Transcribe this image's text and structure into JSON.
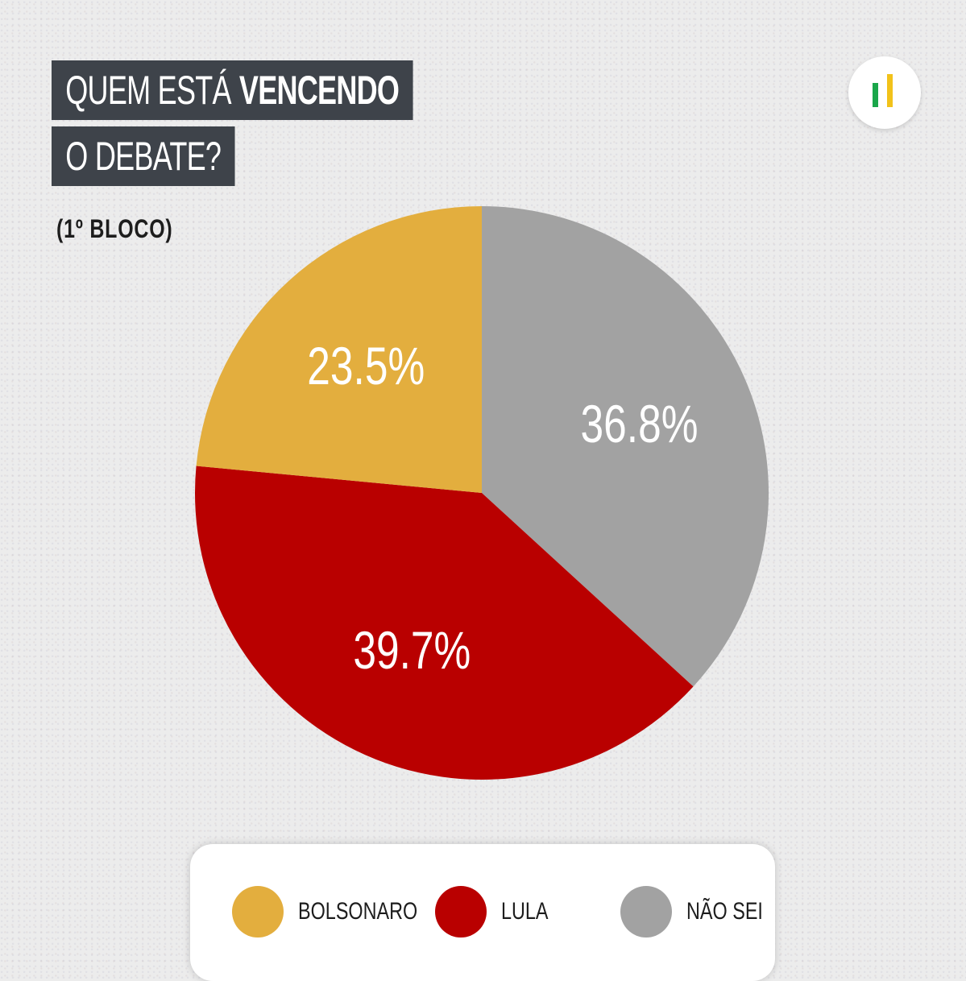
{
  "title": {
    "line1_prefix": "QUEM ESTÁ",
    "line1_bold": "VENCENDO",
    "line2": "O DEBATE?"
  },
  "subtitle": "(1º BLOCO)",
  "chart_data": {
    "type": "pie",
    "title": "QUEM ESTÁ VENCENDO O DEBATE?",
    "subtitle": "(1º BLOCO)",
    "categories": [
      "NÃO SEI",
      "LULA",
      "BOLSONARO"
    ],
    "values": [
      36.8,
      39.7,
      23.5
    ],
    "labels": [
      "36.8%",
      "39.7%",
      "23.5%"
    ],
    "colors": [
      "#a2a2a2",
      "#b90000",
      "#e3ae3e"
    ],
    "start": "12 o'clock",
    "direction": "clockwise",
    "legend": "bottom"
  },
  "legend": {
    "items": [
      {
        "label": "BOLSONARO",
        "color": "#e3ae3e"
      },
      {
        "label": "LULA",
        "color": "#b90000"
      },
      {
        "label": "NÃO SEI",
        "color": "#a2a2a2"
      }
    ]
  },
  "logo": {
    "icon": "bars-logo-icon",
    "colors": [
      "#1aa64a",
      "#f2c21a"
    ]
  }
}
